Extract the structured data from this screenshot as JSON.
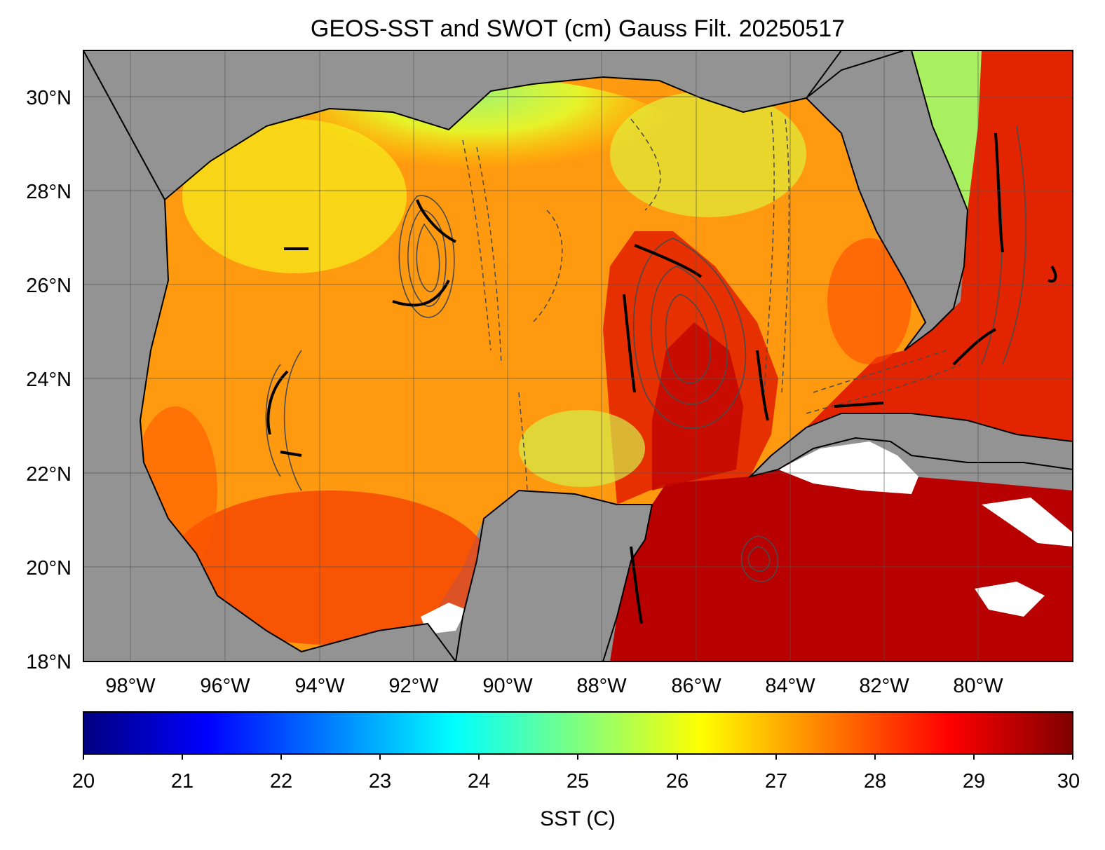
{
  "title": "GEOS-SST  and SWOT (cm) Gauss Filt. 20250517",
  "map": {
    "lat_ticks": [
      "30°N",
      "28°N",
      "26°N",
      "24°N",
      "22°N",
      "20°N",
      "18°N"
    ],
    "lon_ticks": [
      "98°W",
      "96°W",
      "94°W",
      "92°W",
      "90°W",
      "88°W",
      "86°W",
      "84°W",
      "82°W",
      "80°W"
    ],
    "land_color": "#939393",
    "nodata_color": "#ffffff",
    "grid": true
  },
  "colorbar": {
    "label": "SST (C)",
    "ticks": [
      "20",
      "21",
      "22",
      "23",
      "24",
      "25",
      "26",
      "27",
      "28",
      "29",
      "30"
    ],
    "range": [
      20,
      30
    ],
    "colormap": [
      "#00007f",
      "#0000ff",
      "#007fff",
      "#00ffff",
      "#7fff7f",
      "#ffff00",
      "#ff7f00",
      "#ff0000",
      "#7f0000"
    ]
  },
  "chart_data": {
    "type": "heatmap",
    "title": "GEOS-SST  and SWOT (cm) Gauss Filt. 20250517",
    "xlabel": "",
    "ylabel": "",
    "xlim": [
      -99,
      -78
    ],
    "ylim": [
      18,
      31
    ],
    "colorbar_label": "SST (C)",
    "color_range": [
      20,
      30
    ]
  }
}
